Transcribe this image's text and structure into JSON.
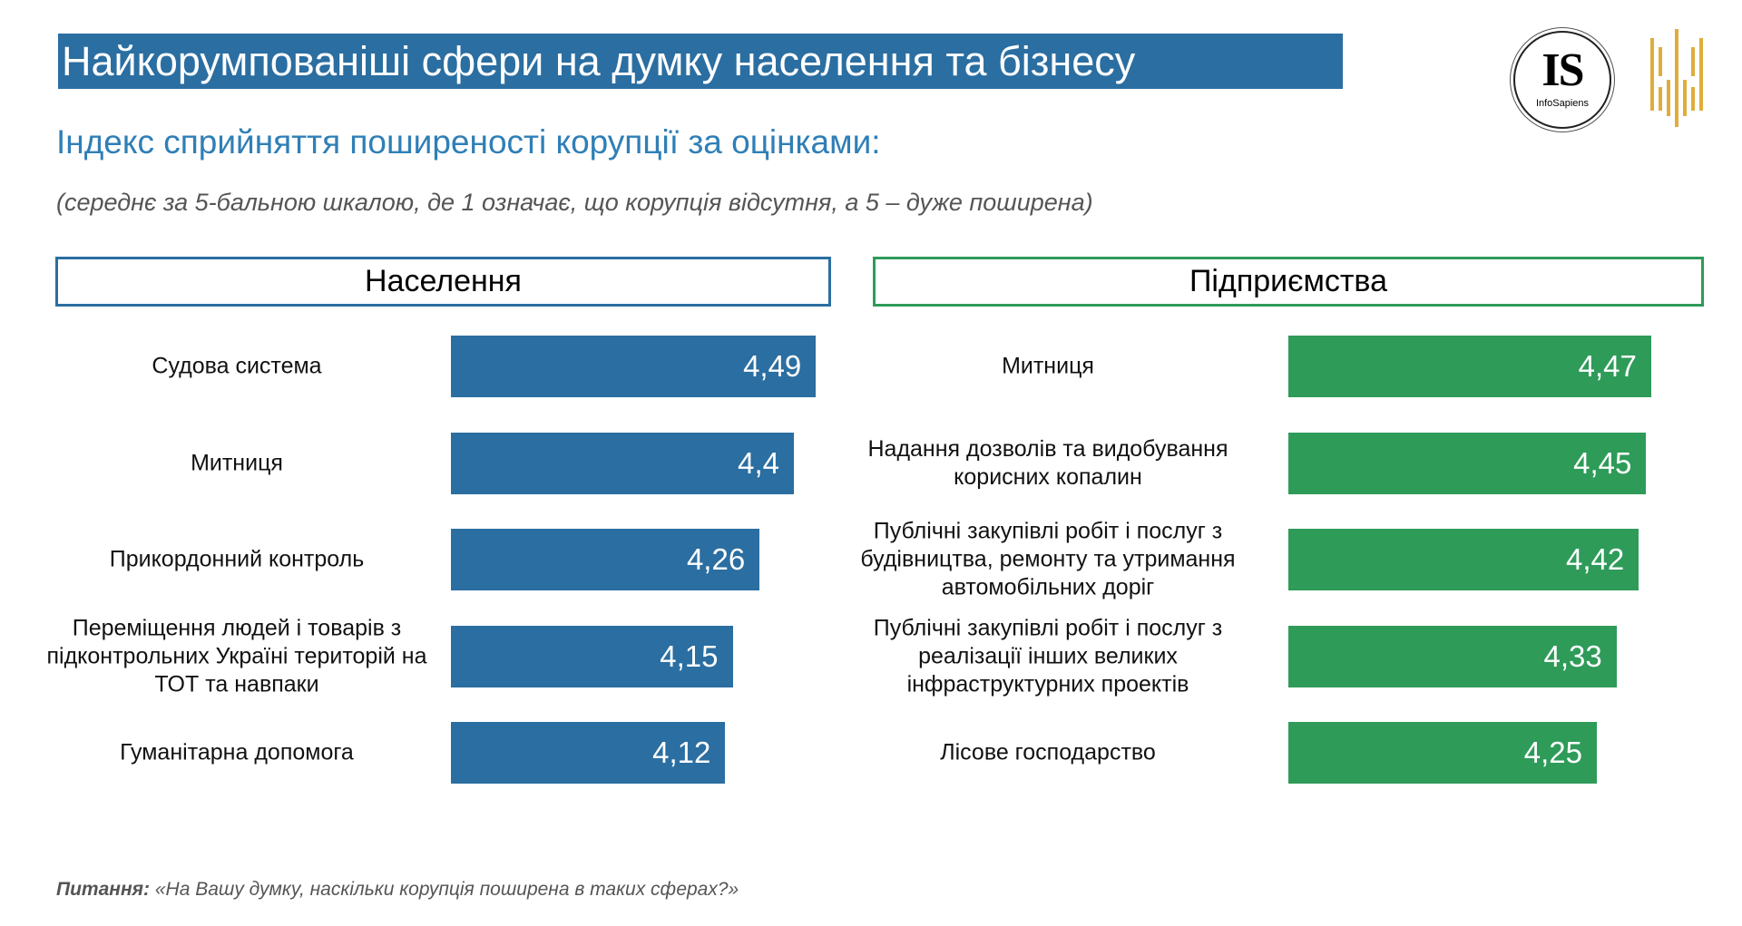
{
  "title": "Найкорумпованіші сфери на думку населення та бізнесу",
  "subtitle": "Індекс сприйняття поширеності корупції за оцінками:",
  "note": "(середнє за 5-бальною шкалою, де 1 означає, що корупція відсутня, а 5 – дуже поширена)",
  "logo_text": "IS",
  "logo_name": "InfoSapiens",
  "footer": {
    "label": "Питання:",
    "text": " «На Вашу думку, наскільки корупція поширена в таких сферах?»"
  },
  "colors": {
    "population": "#2b6ea1",
    "business": "#2e9b59"
  },
  "chart_data": [
    {
      "type": "bar",
      "orientation": "horizontal",
      "title": "Населення",
      "categories": [
        "Судова система",
        "Митниця",
        "Прикордонний контроль",
        "Переміщення людей і товарів з підконтрольних Україні територій на ТОТ та навпаки",
        "Гуманітарна допомога"
      ],
      "values": [
        4.49,
        4.4,
        4.26,
        4.15,
        4.12
      ],
      "value_labels": [
        "4,49",
        "4,4",
        "4,26",
        "4,15",
        "4,12"
      ],
      "xlim": [
        3,
        5
      ],
      "color": "#2b6ea1"
    },
    {
      "type": "bar",
      "orientation": "horizontal",
      "title": "Підприємства",
      "categories": [
        "Митниця",
        "Надання дозволів та видобування корисних копалин",
        "Публічні закупівлі робіт і послуг з будівництва, ремонту та утримання автомобільних доріг",
        "Публічні закупівлі робіт і послуг з реалізації інших великих інфраструктурних проектів",
        "Лісове господарство"
      ],
      "values": [
        4.47,
        4.45,
        4.42,
        4.33,
        4.25
      ],
      "value_labels": [
        "4,47",
        "4,45",
        "4,42",
        "4,33",
        "4,25"
      ],
      "xlim": [
        3,
        5
      ],
      "color": "#2e9b59"
    }
  ]
}
